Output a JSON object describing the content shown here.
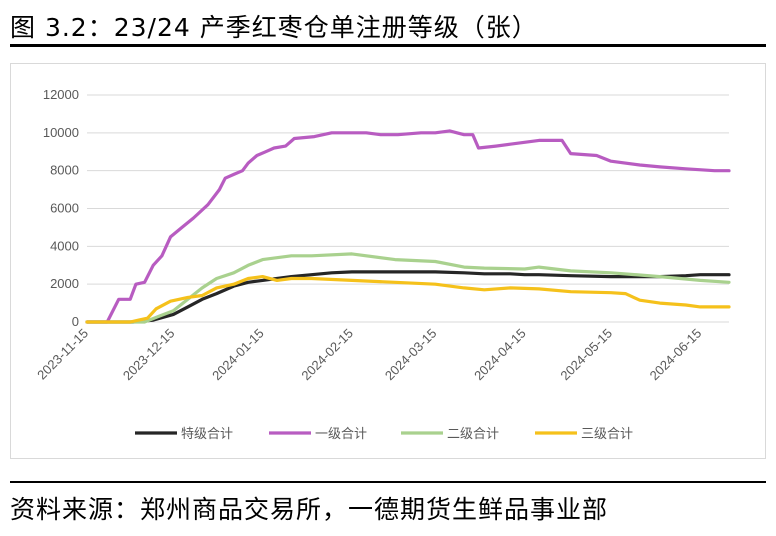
{
  "title": "图 3.2：23/24 产季红枣仓单注册等级（张）",
  "source": "资料来源：郑州商品交易所，一德期货生鲜品事业部",
  "chart_data": {
    "type": "line",
    "title": "",
    "xlabel": "",
    "ylabel": "",
    "ylim": [
      0,
      12000
    ],
    "yticks": [
      "0",
      "2000",
      "4000",
      "6000",
      "8000",
      "10000",
      "12000"
    ],
    "xlim": [
      "2023-11-15",
      "2024-06-25"
    ],
    "xticks": [
      "2023-11-15",
      "2023-12-15",
      "2024-01-15",
      "2024-02-15",
      "2024-03-15",
      "2024-04-15",
      "2024-05-15",
      "2024-06-15"
    ],
    "grid": true,
    "legend_position": "bottom",
    "series": [
      {
        "name": "特级合计",
        "color": "#262626",
        "points": [
          [
            "2023-11-15",
            0
          ],
          [
            "2023-12-01",
            0
          ],
          [
            "2023-12-08",
            100
          ],
          [
            "2023-12-15",
            400
          ],
          [
            "2023-12-20",
            800
          ],
          [
            "2023-12-25",
            1200
          ],
          [
            "2023-12-30",
            1500
          ],
          [
            "2024-01-05",
            1900
          ],
          [
            "2024-01-10",
            2100
          ],
          [
            "2024-01-15",
            2200
          ],
          [
            "2024-01-20",
            2300
          ],
          [
            "2024-01-25",
            2400
          ],
          [
            "2024-02-01",
            2500
          ],
          [
            "2024-02-08",
            2600
          ],
          [
            "2024-02-15",
            2650
          ],
          [
            "2024-03-01",
            2650
          ],
          [
            "2024-03-15",
            2650
          ],
          [
            "2024-03-25",
            2600
          ],
          [
            "2024-04-01",
            2550
          ],
          [
            "2024-04-10",
            2550
          ],
          [
            "2024-04-15",
            2500
          ],
          [
            "2024-04-20",
            2500
          ],
          [
            "2024-05-01",
            2450
          ],
          [
            "2024-05-15",
            2400
          ],
          [
            "2024-06-01",
            2400
          ],
          [
            "2024-06-10",
            2450
          ],
          [
            "2024-06-15",
            2500
          ],
          [
            "2024-06-25",
            2500
          ]
        ]
      },
      {
        "name": "一级合计",
        "color": "#b85cc1",
        "points": [
          [
            "2023-11-15",
            0
          ],
          [
            "2023-11-22",
            0
          ],
          [
            "2023-11-26",
            1200
          ],
          [
            "2023-11-30",
            1200
          ],
          [
            "2023-12-02",
            2000
          ],
          [
            "2023-12-05",
            2100
          ],
          [
            "2023-12-08",
            3000
          ],
          [
            "2023-12-11",
            3500
          ],
          [
            "2023-12-14",
            4500
          ],
          [
            "2023-12-18",
            5000
          ],
          [
            "2023-12-22",
            5500
          ],
          [
            "2023-12-27",
            6200
          ],
          [
            "2023-12-31",
            7000
          ],
          [
            "2024-01-02",
            7600
          ],
          [
            "2024-01-05",
            7800
          ],
          [
            "2024-01-08",
            8000
          ],
          [
            "2024-01-10",
            8400
          ],
          [
            "2024-01-13",
            8800
          ],
          [
            "2024-01-16",
            9000
          ],
          [
            "2024-01-19",
            9200
          ],
          [
            "2024-01-23",
            9300
          ],
          [
            "2024-01-26",
            9700
          ],
          [
            "2024-02-02",
            9800
          ],
          [
            "2024-02-08",
            10000
          ],
          [
            "2024-02-20",
            10000
          ],
          [
            "2024-02-25",
            9900
          ],
          [
            "2024-03-02",
            9900
          ],
          [
            "2024-03-10",
            10000
          ],
          [
            "2024-03-15",
            10000
          ],
          [
            "2024-03-20",
            10100
          ],
          [
            "2024-03-25",
            9900
          ],
          [
            "2024-03-28",
            9900
          ],
          [
            "2024-03-30",
            9200
          ],
          [
            "2024-04-05",
            9300
          ],
          [
            "2024-04-10",
            9400
          ],
          [
            "2024-04-15",
            9500
          ],
          [
            "2024-04-20",
            9600
          ],
          [
            "2024-04-28",
            9600
          ],
          [
            "2024-05-01",
            8900
          ],
          [
            "2024-05-10",
            8800
          ],
          [
            "2024-05-15",
            8500
          ],
          [
            "2024-05-25",
            8300
          ],
          [
            "2024-06-01",
            8200
          ],
          [
            "2024-06-10",
            8100
          ],
          [
            "2024-06-20",
            8000
          ],
          [
            "2024-06-25",
            8000
          ]
        ]
      },
      {
        "name": "二级合计",
        "color": "#a9d18e",
        "points": [
          [
            "2023-11-15",
            0
          ],
          [
            "2023-12-05",
            0
          ],
          [
            "2023-12-10",
            300
          ],
          [
            "2023-12-15",
            600
          ],
          [
            "2023-12-20",
            1200
          ],
          [
            "2023-12-25",
            1800
          ],
          [
            "2023-12-30",
            2300
          ],
          [
            "2024-01-05",
            2600
          ],
          [
            "2024-01-10",
            3000
          ],
          [
            "2024-01-15",
            3300
          ],
          [
            "2024-01-20",
            3400
          ],
          [
            "2024-01-25",
            3500
          ],
          [
            "2024-02-01",
            3500
          ],
          [
            "2024-02-15",
            3600
          ],
          [
            "2024-03-01",
            3300
          ],
          [
            "2024-03-15",
            3200
          ],
          [
            "2024-03-25",
            2900
          ],
          [
            "2024-04-01",
            2850
          ],
          [
            "2024-04-15",
            2800
          ],
          [
            "2024-04-20",
            2900
          ],
          [
            "2024-05-01",
            2700
          ],
          [
            "2024-05-15",
            2600
          ],
          [
            "2024-06-01",
            2400
          ],
          [
            "2024-06-15",
            2200
          ],
          [
            "2024-06-25",
            2100
          ]
        ]
      },
      {
        "name": "三级合计",
        "color": "#f5c11b",
        "points": [
          [
            "2023-11-15",
            0
          ],
          [
            "2023-11-30",
            0
          ],
          [
            "2023-12-03",
            100
          ],
          [
            "2023-12-06",
            200
          ],
          [
            "2023-12-09",
            700
          ],
          [
            "2023-12-14",
            1100
          ],
          [
            "2023-12-20",
            1300
          ],
          [
            "2023-12-25",
            1400
          ],
          [
            "2023-12-30",
            1800
          ],
          [
            "2024-01-05",
            2000
          ],
          [
            "2024-01-10",
            2300
          ],
          [
            "2024-01-15",
            2400
          ],
          [
            "2024-01-20",
            2200
          ],
          [
            "2024-01-25",
            2300
          ],
          [
            "2024-02-01",
            2300
          ],
          [
            "2024-02-15",
            2200
          ],
          [
            "2024-03-01",
            2100
          ],
          [
            "2024-03-15",
            2000
          ],
          [
            "2024-03-25",
            1800
          ],
          [
            "2024-04-01",
            1700
          ],
          [
            "2024-04-10",
            1800
          ],
          [
            "2024-04-20",
            1750
          ],
          [
            "2024-05-01",
            1600
          ],
          [
            "2024-05-15",
            1550
          ],
          [
            "2024-05-20",
            1500
          ],
          [
            "2024-05-25",
            1150
          ],
          [
            "2024-06-01",
            1000
          ],
          [
            "2024-06-10",
            900
          ],
          [
            "2024-06-15",
            800
          ],
          [
            "2024-06-25",
            800
          ]
        ]
      }
    ]
  }
}
